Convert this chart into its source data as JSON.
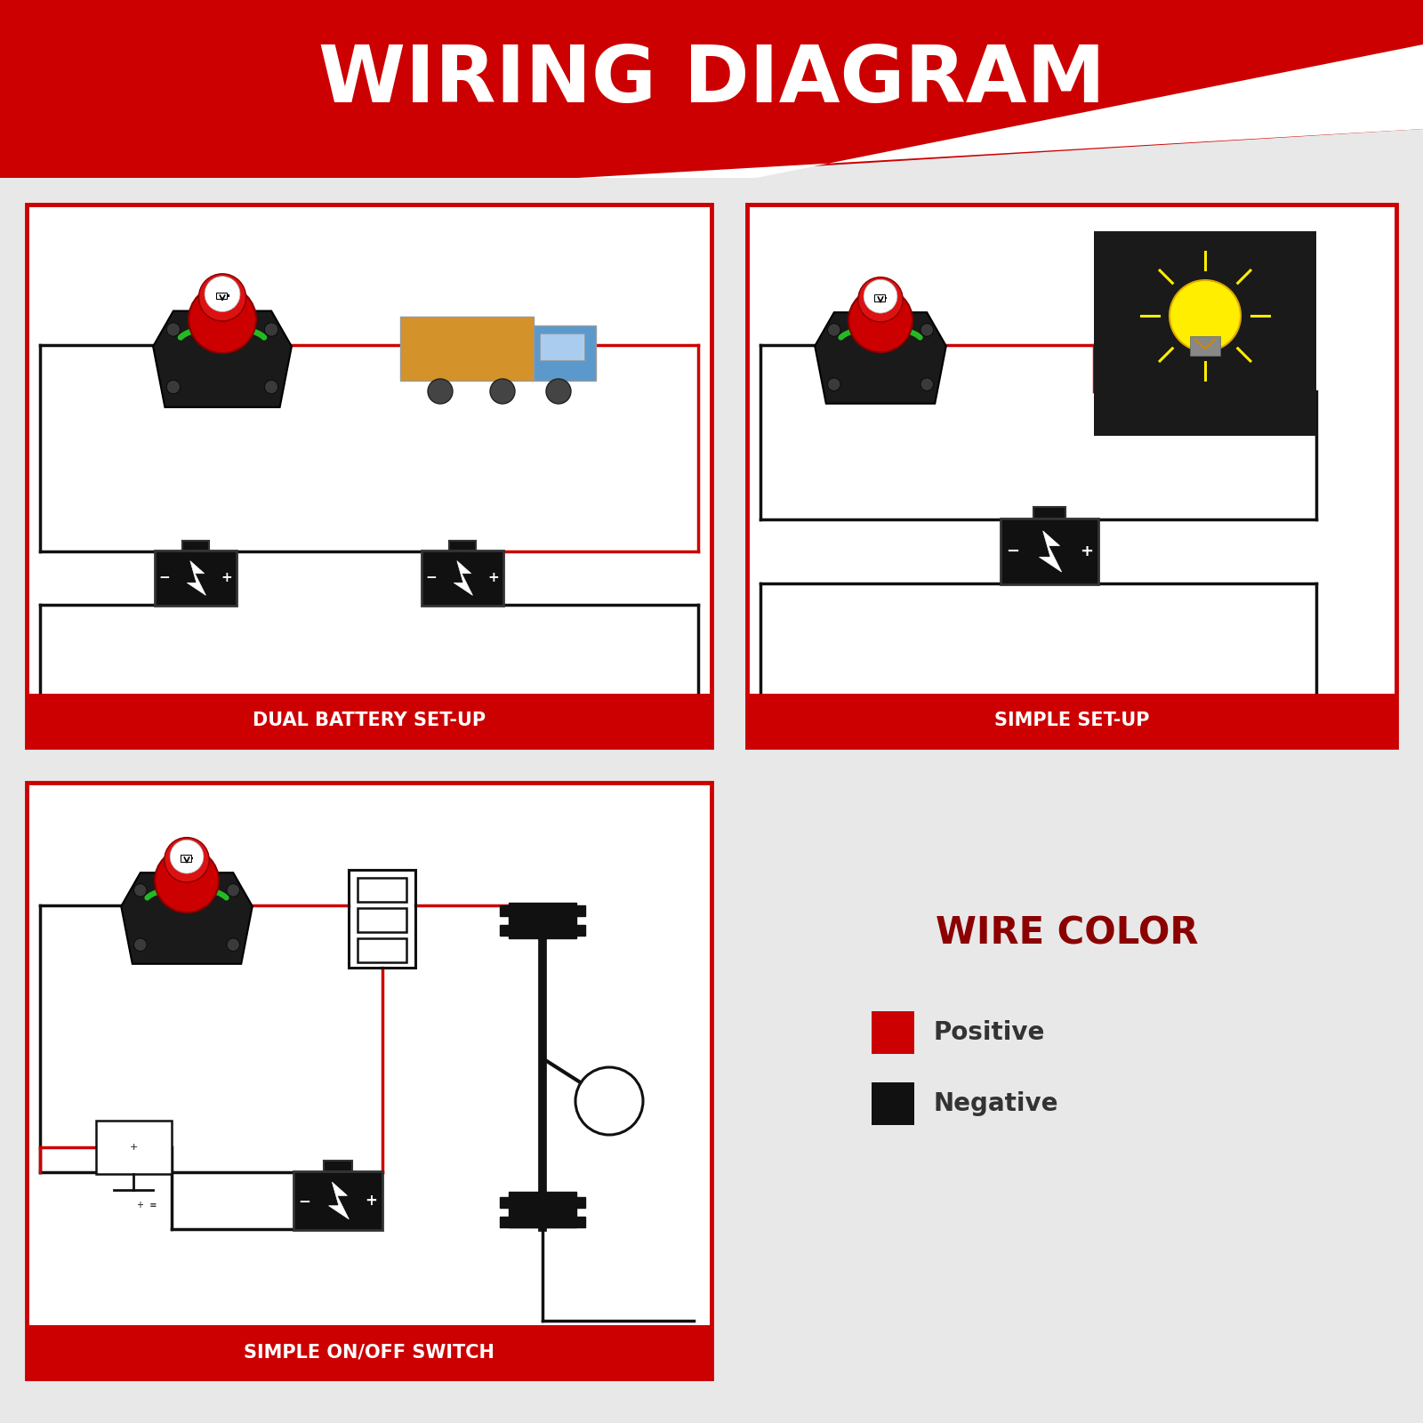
{
  "title": "WIRING DIAGRAM",
  "bg_color": "#e8e8e8",
  "panel_bg": "#ffffff",
  "border_color": "#cc0000",
  "red": "#cc0000",
  "black": "#111111",
  "white": "#ffffff",
  "dark_red": "#8b0000",
  "label1": "DUAL BATTERY SET-UP",
  "label2": "SIMPLE SET-UP",
  "label3": "SIMPLE ON/OFF SWITCH",
  "wire_color_title": "WIRE COLOR",
  "wire_color_pos": "Positive",
  "wire_color_neg": "Negative"
}
